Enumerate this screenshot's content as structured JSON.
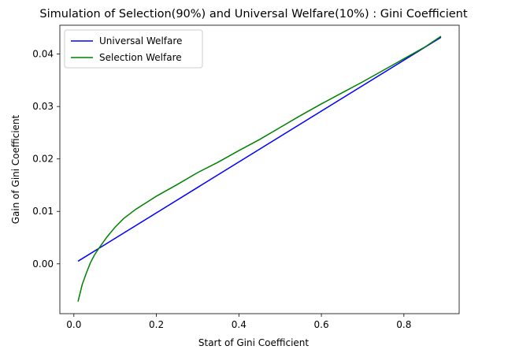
{
  "chart_data": {
    "type": "line",
    "title": "Simulation of Selection(90%) and Universal Welfare(10%) : Gini Coefficient",
    "xlabel": "Start of Gini Coefficient",
    "ylabel": "Gain of Gini Coefficient",
    "xlim": [
      -0.034,
      0.934
    ],
    "ylim": [
      -0.0095,
      0.0455
    ],
    "xticks": [
      0.0,
      0.2,
      0.4,
      0.6,
      0.8
    ],
    "xtick_labels": [
      "0.0",
      "0.2",
      "0.4",
      "0.6",
      "0.8"
    ],
    "yticks": [
      0.0,
      0.01,
      0.02,
      0.03,
      0.04
    ],
    "ytick_labels": [
      "0.00",
      "0.01",
      "0.02",
      "0.03",
      "0.04"
    ],
    "grid": false,
    "legend_position": "upper-left",
    "series": [
      {
        "name": "Universal Welfare",
        "color": "#0000ff",
        "x": [
          0.01,
          0.89
        ],
        "y": [
          0.0005,
          0.0432
        ]
      },
      {
        "name": "Selection Welfare",
        "color": "#008000",
        "x": [
          0.01,
          0.02,
          0.03,
          0.04,
          0.05,
          0.06,
          0.08,
          0.1,
          0.12,
          0.15,
          0.18,
          0.2,
          0.25,
          0.3,
          0.35,
          0.4,
          0.45,
          0.5,
          0.55,
          0.6,
          0.65,
          0.7,
          0.75,
          0.8,
          0.85,
          0.89
        ],
        "y": [
          -0.0072,
          -0.004,
          -0.0018,
          0.0002,
          0.0017,
          0.0029,
          0.0051,
          0.007,
          0.0086,
          0.0104,
          0.0119,
          0.0129,
          0.0151,
          0.0174,
          0.0194,
          0.0216,
          0.0237,
          0.026,
          0.0283,
          0.0305,
          0.0326,
          0.0347,
          0.0369,
          0.0391,
          0.0413,
          0.0434
        ]
      }
    ]
  }
}
